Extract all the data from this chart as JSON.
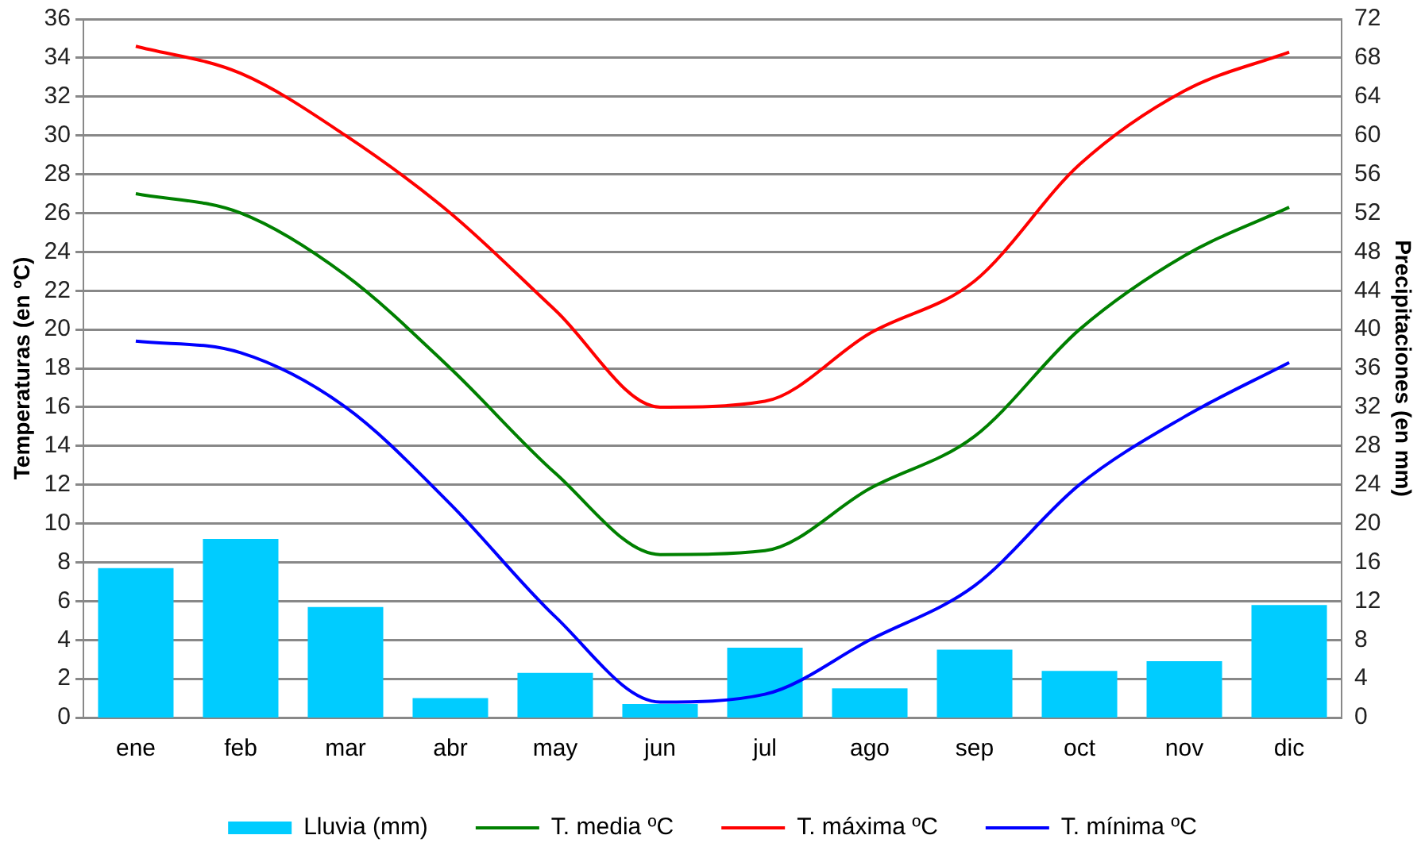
{
  "chart_data": {
    "type": "bar",
    "ylabel": "Temperaturas (en ºC)",
    "y2label": "Precipitaciones (en mm)",
    "categories": [
      "ene",
      "feb",
      "mar",
      "abr",
      "may",
      "jun",
      "jul",
      "ago",
      "sep",
      "oct",
      "nov",
      "dic"
    ],
    "series": [
      {
        "name": "Lluvia (mm)",
        "axis": "y2",
        "color": "#00ccff",
        "values": [
          15.4,
          18.4,
          11.4,
          2,
          4.6,
          1.4,
          7.2,
          3,
          7,
          4.8,
          5.8,
          11.6
        ]
      },
      {
        "name": "T. media ºC",
        "type": "line",
        "color": "#008000",
        "values": [
          27.0,
          26.0,
          22.8,
          18.0,
          12.6,
          8.4,
          8.6,
          11.8,
          14.5,
          20.0,
          23.8,
          26.3
        ]
      },
      {
        "name": "T. máxima ºC",
        "type": "line",
        "color": "#ff0000",
        "values": [
          34.6,
          33.2,
          30.0,
          26.0,
          21.0,
          16.0,
          16.3,
          19.8,
          22.5,
          28.5,
          32.3,
          34.3
        ]
      },
      {
        "name": "T. mínima ºC",
        "type": "line",
        "color": "#0000ff",
        "values": [
          19.4,
          18.8,
          16.0,
          11.0,
          5.2,
          0.8,
          1.2,
          4.0,
          6.8,
          12.0,
          15.5,
          18.3
        ]
      }
    ],
    "ylim": [
      0,
      36
    ],
    "yticks": [
      0,
      2,
      4,
      6,
      8,
      10,
      12,
      14,
      16,
      18,
      20,
      22,
      24,
      26,
      28,
      30,
      32,
      34,
      36
    ],
    "y2lim": [
      0,
      72
    ],
    "y2ticks": [
      0,
      4,
      8,
      12,
      16,
      20,
      24,
      28,
      32,
      36,
      40,
      44,
      48,
      52,
      56,
      60,
      64,
      68,
      72
    ],
    "grid": "y",
    "legend": "bottom",
    "marker": "none",
    "line_style": "solid"
  }
}
